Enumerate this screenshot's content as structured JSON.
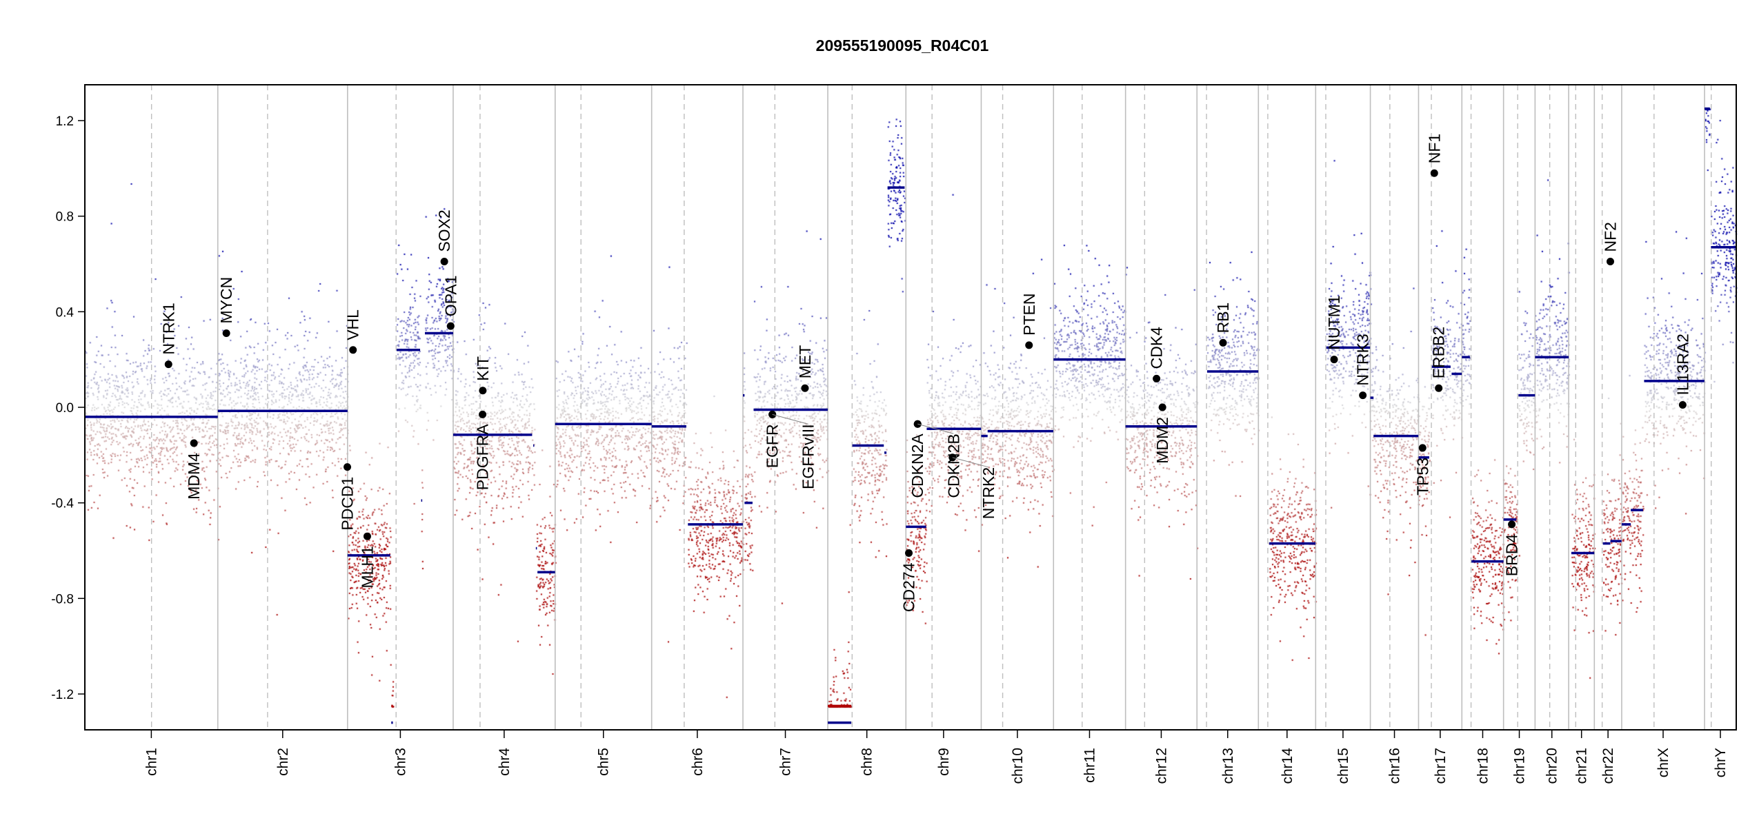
{
  "chart_data": {
    "type": "scatter",
    "title": "209555190095_R04C01",
    "xlabel": "",
    "ylabel": "",
    "ylim": [
      -1.35,
      1.35
    ],
    "yticks": [
      -1.2,
      -0.8,
      -0.4,
      0.0,
      0.4,
      0.8,
      1.2
    ],
    "ytick_labels": [
      "-1.2",
      "-0.8",
      "-0.4",
      "0.0",
      "0.4",
      "0.8",
      "1.2"
    ],
    "grid": false,
    "legend": "none",
    "colors": {
      "gain": "#00008b",
      "loss": "#8b0000",
      "neutral": "#cccccc",
      "segment": "#00008b",
      "segment_clipped": "#b00000",
      "gene_marker": "#000000",
      "chr_boundary": "#bebebe",
      "centromere": "#bebebe"
    },
    "chromosomes": [
      {
        "name": "chr1",
        "length_mb": 249.25,
        "centromere_mb": 125.0
      },
      {
        "name": "chr2",
        "length_mb": 243.2,
        "centromere_mb": 93.3
      },
      {
        "name": "chr3",
        "length_mb": 198.0,
        "centromere_mb": 91.0
      },
      {
        "name": "chr4",
        "length_mb": 191.15,
        "centromere_mb": 50.4
      },
      {
        "name": "chr5",
        "length_mb": 180.9,
        "centromere_mb": 48.4
      },
      {
        "name": "chr6",
        "length_mb": 171.1,
        "centromere_mb": 61.0
      },
      {
        "name": "chr7",
        "length_mb": 159.1,
        "centromere_mb": 59.9
      },
      {
        "name": "chr8",
        "length_mb": 146.4,
        "centromere_mb": 45.6
      },
      {
        "name": "chr9",
        "length_mb": 141.2,
        "centromere_mb": 49.0
      },
      {
        "name": "chr10",
        "length_mb": 135.5,
        "centromere_mb": 40.2
      },
      {
        "name": "chr11",
        "length_mb": 135.0,
        "centromere_mb": 53.7
      },
      {
        "name": "chr12",
        "length_mb": 133.9,
        "centromere_mb": 35.8
      },
      {
        "name": "chr13",
        "length_mb": 115.2,
        "centromere_mb": 17.9
      },
      {
        "name": "chr14",
        "length_mb": 107.3,
        "centromere_mb": 17.6
      },
      {
        "name": "chr15",
        "length_mb": 102.5,
        "centromere_mb": 19.0
      },
      {
        "name": "chr16",
        "length_mb": 90.4,
        "centromere_mb": 36.6
      },
      {
        "name": "chr17",
        "length_mb": 81.2,
        "centromere_mb": 24.0
      },
      {
        "name": "chr18",
        "length_mb": 78.1,
        "centromere_mb": 17.2
      },
      {
        "name": "chr19",
        "length_mb": 59.1,
        "centromere_mb": 26.5
      },
      {
        "name": "chr20",
        "length_mb": 63.0,
        "centromere_mb": 27.5
      },
      {
        "name": "chr21",
        "length_mb": 48.1,
        "centromere_mb": 13.2
      },
      {
        "name": "chr22",
        "length_mb": 51.3,
        "centromere_mb": 14.7
      },
      {
        "name": "chrX",
        "length_mb": 155.3,
        "centromere_mb": 60.6
      },
      {
        "name": "chrY",
        "length_mb": 59.4,
        "centromere_mb": 12.5
      }
    ],
    "segments": [
      {
        "chr": "chr1",
        "start_mb": 0,
        "end_mb": 249.2,
        "value": -0.04
      },
      {
        "chr": "chr2",
        "start_mb": 0,
        "end_mb": 243.2,
        "value": -0.015
      },
      {
        "chr": "chr3",
        "start_mb": 0,
        "end_mb": 80,
        "value": -0.62
      },
      {
        "chr": "chr3",
        "start_mb": 82,
        "end_mb": 85,
        "value": -1.32
      },
      {
        "chr": "chr3",
        "start_mb": 92,
        "end_mb": 136,
        "value": 0.24
      },
      {
        "chr": "chr3",
        "start_mb": 138,
        "end_mb": 140,
        "value": -0.39
      },
      {
        "chr": "chr3",
        "start_mb": 145,
        "end_mb": 198,
        "value": 0.31
      },
      {
        "chr": "chr4",
        "start_mb": 0,
        "end_mb": 148,
        "value": -0.115
      },
      {
        "chr": "chr4",
        "start_mb": 150,
        "end_mb": 152,
        "value": -0.16
      },
      {
        "chr": "chr4",
        "start_mb": 155,
        "end_mb": 157,
        "value": -0.59
      },
      {
        "chr": "chr4",
        "start_mb": 158,
        "end_mb": 191,
        "value": -0.69
      },
      {
        "chr": "chr5",
        "start_mb": 0,
        "end_mb": 180.9,
        "value": -0.07
      },
      {
        "chr": "chr6",
        "start_mb": 0,
        "end_mb": 65,
        "value": -0.08
      },
      {
        "chr": "chr6",
        "start_mb": 68,
        "end_mb": 171,
        "value": -0.49
      },
      {
        "chr": "chr7",
        "start_mb": 0,
        "end_mb": 3,
        "value": 0.05
      },
      {
        "chr": "chr7",
        "start_mb": 3,
        "end_mb": 18,
        "value": -0.4
      },
      {
        "chr": "chr7",
        "start_mb": 20,
        "end_mb": 159,
        "value": -0.01
      },
      {
        "chr": "chr8",
        "start_mb": 0,
        "end_mb": 44,
        "value": -1.32
      },
      {
        "chr": "chr8",
        "start_mb": 46,
        "end_mb": 105,
        "value": -0.16
      },
      {
        "chr": "chr8",
        "start_mb": 106,
        "end_mb": 110,
        "value": -0.19
      },
      {
        "chr": "chr8",
        "start_mb": 112,
        "end_mb": 144,
        "value": 0.92
      },
      {
        "chr": "chr9",
        "start_mb": 0,
        "end_mb": 38,
        "value": -0.5
      },
      {
        "chr": "chr9",
        "start_mb": 39,
        "end_mb": 141,
        "value": -0.09
      },
      {
        "chr": "chr10",
        "start_mb": 0,
        "end_mb": 12,
        "value": -0.12
      },
      {
        "chr": "chr10",
        "start_mb": 12,
        "end_mb": 135,
        "value": -0.1
      },
      {
        "chr": "chr11",
        "start_mb": 0,
        "end_mb": 135,
        "value": 0.2
      },
      {
        "chr": "chr12",
        "start_mb": 0,
        "end_mb": 133.9,
        "value": -0.08
      },
      {
        "chr": "chr13",
        "start_mb": 19,
        "end_mb": 115,
        "value": 0.15
      },
      {
        "chr": "chr14",
        "start_mb": 20,
        "end_mb": 107,
        "value": -0.57
      },
      {
        "chr": "chr15",
        "start_mb": 20,
        "end_mb": 102,
        "value": 0.25
      },
      {
        "chr": "chr16",
        "start_mb": 0,
        "end_mb": 6,
        "value": 0.04
      },
      {
        "chr": "chr16",
        "start_mb": 6,
        "end_mb": 90,
        "value": -0.12
      },
      {
        "chr": "chr17",
        "start_mb": 0,
        "end_mb": 20,
        "value": -0.21
      },
      {
        "chr": "chr17",
        "start_mb": 25,
        "end_mb": 60,
        "value": 0.17
      },
      {
        "chr": "chr17",
        "start_mb": 62,
        "end_mb": 81,
        "value": 0.14
      },
      {
        "chr": "chr18",
        "start_mb": 0,
        "end_mb": 15,
        "value": 0.21
      },
      {
        "chr": "chr18",
        "start_mb": 18,
        "end_mb": 78,
        "value": -0.645
      },
      {
        "chr": "chr19",
        "start_mb": 0,
        "end_mb": 24,
        "value": -0.47
      },
      {
        "chr": "chr19",
        "start_mb": 28,
        "end_mb": 59,
        "value": 0.05
      },
      {
        "chr": "chr20",
        "start_mb": 0,
        "end_mb": 63,
        "value": 0.21
      },
      {
        "chr": "chr21",
        "start_mb": 5,
        "end_mb": 48,
        "value": -0.61
      },
      {
        "chr": "chr22",
        "start_mb": 16,
        "end_mb": 30,
        "value": -0.57
      },
      {
        "chr": "chr22",
        "start_mb": 30,
        "end_mb": 51,
        "value": -0.56
      },
      {
        "chr": "chrX",
        "start_mb": 0,
        "end_mb": 17,
        "value": -0.49
      },
      {
        "chr": "chrX",
        "start_mb": 17,
        "end_mb": 40,
        "value": -0.43
      },
      {
        "chr": "chrX",
        "start_mb": 42,
        "end_mb": 155,
        "value": 0.11
      },
      {
        "chr": "chrY",
        "start_mb": 0,
        "end_mb": 10,
        "value": 1.25
      },
      {
        "chr": "chrY",
        "start_mb": 12,
        "end_mb": 59,
        "value": 0.67
      }
    ],
    "genes": [
      {
        "name": "NTRK1",
        "chr": "chr1",
        "pos_mb": 156.8,
        "value": 0.18
      },
      {
        "name": "MDM4",
        "chr": "chr1",
        "pos_mb": 204.5,
        "value": -0.15
      },
      {
        "name": "MYCN",
        "chr": "chr2",
        "pos_mb": 16.0,
        "value": 0.31
      },
      {
        "name": "PDCD1",
        "chr": "chr2",
        "pos_mb": 242.8,
        "value": -0.25
      },
      {
        "name": "VHL",
        "chr": "chr3",
        "pos_mb": 10.2,
        "value": 0.24
      },
      {
        "name": "MLH1",
        "chr": "chr3",
        "pos_mb": 37.0,
        "value": -0.54
      },
      {
        "name": "SOX2",
        "chr": "chr3",
        "pos_mb": 181.4,
        "value": 0.61
      },
      {
        "name": "OPA1",
        "chr": "chr3",
        "pos_mb": 193.3,
        "value": 0.34
      },
      {
        "name": "PDGFRA",
        "chr": "chr4",
        "pos_mb": 55.1,
        "value": -0.03
      },
      {
        "name": "KIT",
        "chr": "chr4",
        "pos_mb": 55.5,
        "value": 0.07
      },
      {
        "name": "EGFR",
        "chr": "chr7",
        "pos_mb": 55.1,
        "value": -0.03
      },
      {
        "name": "EGFRvIII",
        "chr": "chr7",
        "pos_mb": 55.2,
        "value": -0.03
      },
      {
        "name": "MET",
        "chr": "chr7",
        "pos_mb": 116.3,
        "value": 0.08
      },
      {
        "name": "CD274",
        "chr": "chr9",
        "pos_mb": 5.5,
        "value": -0.61
      },
      {
        "name": "CDKN2A",
        "chr": "chr9",
        "pos_mb": 21.9,
        "value": -0.07
      },
      {
        "name": "CDKN2B",
        "chr": "chr9",
        "pos_mb": 22.0,
        "value": -0.07
      },
      {
        "name": "NTRK2",
        "chr": "chr9",
        "pos_mb": 87.3,
        "value": -0.21
      },
      {
        "name": "PTEN",
        "chr": "chr10",
        "pos_mb": 89.6,
        "value": 0.26
      },
      {
        "name": "CDK4",
        "chr": "chr12",
        "pos_mb": 58.1,
        "value": 0.12
      },
      {
        "name": "MDM2",
        "chr": "chr12",
        "pos_mb": 69.2,
        "value": 0.0
      },
      {
        "name": "RB1",
        "chr": "chr13",
        "pos_mb": 48.9,
        "value": 0.27
      },
      {
        "name": "NUTM1",
        "chr": "chr15",
        "pos_mb": 34.6,
        "value": 0.2
      },
      {
        "name": "NTRK3",
        "chr": "chr15",
        "pos_mb": 88.4,
        "value": 0.05
      },
      {
        "name": "TP53",
        "chr": "chr17",
        "pos_mb": 7.5,
        "value": -0.17
      },
      {
        "name": "NF1",
        "chr": "chr17",
        "pos_mb": 29.5,
        "value": 0.98
      },
      {
        "name": "ERBB2",
        "chr": "chr17",
        "pos_mb": 37.8,
        "value": 0.08
      },
      {
        "name": "BRD4",
        "chr": "chr19",
        "pos_mb": 15.4,
        "value": -0.49
      },
      {
        "name": "NF2",
        "chr": "chr22",
        "pos_mb": 30.0,
        "value": 0.61
      },
      {
        "name": "IL13RA2",
        "chr": "chrX",
        "pos_mb": 114.3,
        "value": 0.01
      }
    ]
  }
}
